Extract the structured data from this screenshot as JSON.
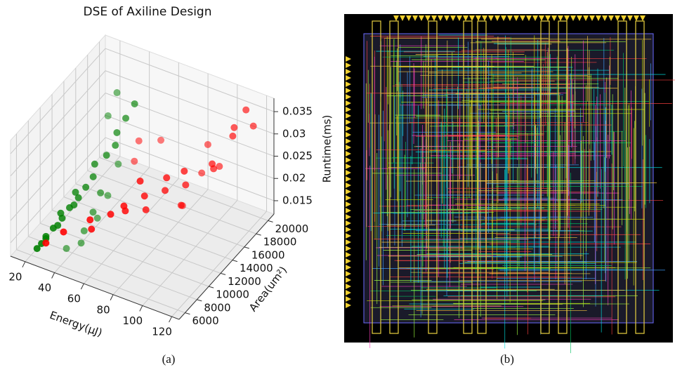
{
  "chart_data": {
    "type": "scatter3d",
    "title": "DSE of Axiline Design",
    "xlabel": "Energy(μJ)",
    "ylabel": "Area(um²)",
    "zlabel": "Runtime(ms)",
    "xlim": [
      10,
      125
    ],
    "ylim": [
      5000,
      21000
    ],
    "zlim": [
      0.012,
      0.038
    ],
    "xticks": [
      20,
      40,
      60,
      80,
      100,
      120
    ],
    "yticks": [
      6000,
      8000,
      10000,
      12000,
      14000,
      16000,
      18000,
      20000
    ],
    "zticks": [
      0.015,
      0.02,
      0.025,
      0.03,
      0.035
    ],
    "grid": true,
    "series": [
      {
        "color": "#008000",
        "x": [
          20,
          21,
          22,
          20,
          23,
          24,
          25,
          22,
          26,
          27,
          28,
          24,
          29,
          30,
          27,
          31,
          33,
          30,
          32,
          34,
          35,
          38,
          40,
          42,
          36,
          45,
          44,
          39,
          26,
          28
        ],
        "y": [
          7000,
          7500,
          8000,
          8500,
          9000,
          9500,
          10000,
          10500,
          11000,
          11500,
          12000,
          12500,
          13000,
          14000,
          15000,
          16000,
          17000,
          18000,
          19000,
          20000,
          14000,
          12000,
          10000,
          9000,
          8000,
          11000,
          13000,
          16000,
          19000,
          17000
        ],
        "z": [
          0.012,
          0.0125,
          0.013,
          0.0125,
          0.014,
          0.014,
          0.015,
          0.015,
          0.016,
          0.016,
          0.017,
          0.017,
          0.018,
          0.019,
          0.02,
          0.021,
          0.022,
          0.023,
          0.025,
          0.027,
          0.016,
          0.015,
          0.014,
          0.013,
          0.0125,
          0.016,
          0.018,
          0.02,
          0.03,
          0.028
        ]
      },
      {
        "color": "#ff0000",
        "x": [
          22,
          30,
          40,
          45,
          50,
          55,
          60,
          58,
          65,
          70,
          72,
          75,
          80,
          85,
          90,
          95,
          100,
          105,
          110,
          112,
          115,
          108,
          100,
          95,
          88,
          50,
          45,
          60
        ],
        "y": [
          8000,
          9000,
          11000,
          10000,
          12000,
          13000,
          12000,
          15000,
          14000,
          13000,
          16000,
          15000,
          17000,
          16000,
          14000,
          18000,
          17000,
          19000,
          18000,
          19500,
          20000,
          16000,
          15000,
          13000,
          19000,
          16000,
          18000,
          18000
        ],
        "z": [
          0.012,
          0.014,
          0.015,
          0.015,
          0.016,
          0.017,
          0.018,
          0.02,
          0.019,
          0.018,
          0.021,
          0.02,
          0.022,
          0.021,
          0.02,
          0.024,
          0.025,
          0.03,
          0.034,
          0.036,
          0.032,
          0.028,
          0.027,
          0.022,
          0.026,
          0.022,
          0.023,
          0.025
        ]
      }
    ],
    "caption": "(a)"
  },
  "layout_image": {
    "caption": "(b)"
  }
}
